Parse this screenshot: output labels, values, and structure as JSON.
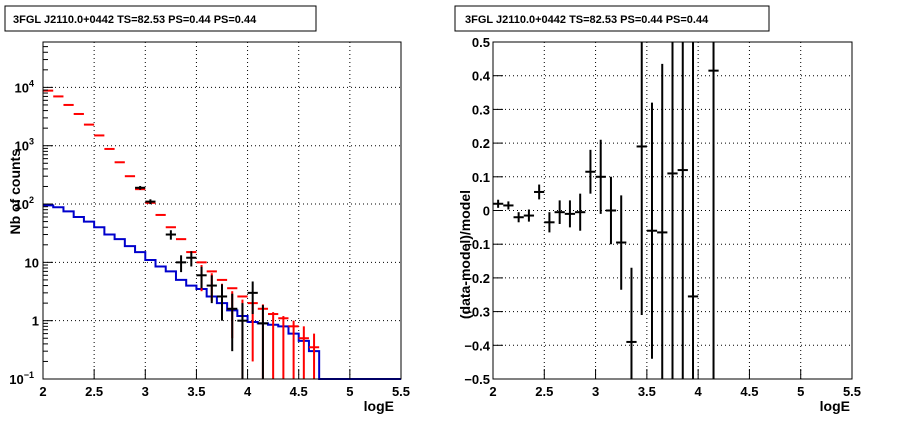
{
  "chart_data": [
    {
      "type": "line",
      "title": "3FGL J2110.0+0442 TS=82.53 PS=0.44 PS=0.44",
      "xlabel": "logE",
      "ylabel": "Nb of counts",
      "xlim": [
        2,
        5.5
      ],
      "ylim": [
        0.1,
        60000
      ],
      "yscale": "log",
      "grid": true,
      "x_ticks": [
        "2",
        "2.5",
        "3",
        "3.5",
        "4",
        "4.5",
        "5",
        "5.5"
      ],
      "y_ticks": [
        "10^-1",
        "1",
        "10",
        "10^2",
        "10^3",
        "10^4"
      ],
      "series": [
        {
          "role": "model total (histogram)",
          "color": "#ff0000",
          "x": [
            2.05,
            2.15,
            2.25,
            2.35,
            2.45,
            2.55,
            2.65,
            2.75,
            2.85,
            2.95,
            3.05,
            3.15,
            3.25,
            3.35,
            3.45,
            3.55,
            3.65,
            3.75,
            3.85,
            3.95,
            4.05,
            4.15,
            4.25,
            4.35,
            4.45,
            4.55,
            4.65,
            4.75,
            4.85,
            4.95,
            5.05,
            5.15,
            5.25,
            5.35,
            5.45
          ],
          "values": [
            8800,
            7000,
            5000,
            3500,
            2300,
            1500,
            880,
            520,
            300,
            180,
            105,
            65,
            40,
            25,
            15,
            10,
            7,
            5,
            3.6,
            2.6,
            2.0,
            1.6,
            1.3,
            1.1,
            0.8,
            0.5,
            0.35,
            0.1,
            0.1,
            0.1,
            0.1,
            0.1,
            0.1,
            0.1,
            0.1
          ]
        },
        {
          "role": "source model (histogram)",
          "color": "#0000cc",
          "x": [
            2.05,
            2.15,
            2.25,
            2.35,
            2.45,
            2.55,
            2.65,
            2.75,
            2.85,
            2.95,
            3.05,
            3.15,
            3.25,
            3.35,
            3.45,
            3.55,
            3.65,
            3.75,
            3.85,
            3.95,
            4.05,
            4.15,
            4.25,
            4.35,
            4.45,
            4.55,
            4.65,
            4.75,
            4.85,
            4.95,
            5.05,
            5.15,
            5.25,
            5.35,
            5.45
          ],
          "values": [
            95,
            88,
            75,
            60,
            50,
            40,
            30,
            25,
            19,
            15,
            11,
            8.5,
            7,
            5,
            4,
            3.5,
            2.6,
            2,
            1.5,
            1.2,
            0.95,
            0.9,
            0.85,
            0.8,
            0.6,
            0.45,
            0.3,
            0.1,
            0.1,
            0.1,
            0.1,
            0.1,
            0.1,
            0.1,
            0.1
          ]
        },
        {
          "role": "data (points with error bars)",
          "color": "#000000",
          "x": [
            2.95,
            3.05,
            3.25,
            3.35,
            3.45,
            3.55,
            3.65,
            3.75,
            3.85,
            3.95,
            4.05,
            4.15
          ],
          "values": [
            190,
            110,
            30,
            10,
            12,
            6,
            4,
            2.6,
            1.6,
            1,
            3,
            0.9
          ],
          "errors": [
            14,
            10.5,
            5.5,
            3.2,
            3.5,
            2.4,
            2,
            1.6,
            1.3,
            1,
            1.7,
            0.95
          ]
        },
        {
          "role": "model bin error bars",
          "color": "#ff0000",
          "x": [
            3.55,
            3.65,
            3.75,
            3.85,
            3.95,
            4.05,
            4.15,
            4.25,
            4.35,
            4.45,
            4.55,
            4.65
          ],
          "low": [
            3.2,
            2.2,
            1.2,
            0.5,
            0.1,
            0.2,
            0.1,
            0.1,
            0.1,
            0.1,
            0.1,
            0.1
          ],
          "high": [
            9,
            6.5,
            4.3,
            3.2,
            2.3,
            2,
            1.9,
            1.4,
            1.2,
            1,
            0.8,
            0.6
          ]
        }
      ]
    },
    {
      "type": "scatter",
      "title": "3FGL J2110.0+0442 TS=82.53 PS=0.44 PS=0.44",
      "xlabel": "logE",
      "ylabel": "(data-model)/model",
      "xlim": [
        2,
        5.5
      ],
      "ylim": [
        -0.5,
        0.5
      ],
      "grid": true,
      "x_ticks": [
        "2",
        "2.5",
        "3",
        "3.5",
        "4",
        "4.5",
        "5",
        "5.5"
      ],
      "y_ticks": [
        "-0.5",
        "-0.4",
        "-0.3",
        "-0.2",
        "-0.1",
        "0",
        "0.1",
        "0.2",
        "0.3",
        "0.4",
        "0.5"
      ],
      "series": [
        {
          "role": "residuals",
          "color": "#000000",
          "x": [
            2.05,
            2.15,
            2.25,
            2.35,
            2.45,
            2.55,
            2.65,
            2.75,
            2.85,
            2.95,
            3.05,
            3.15,
            3.25,
            3.35,
            3.45,
            3.55,
            3.65,
            3.75,
            3.85,
            3.95,
            4.15
          ],
          "values": [
            0.02,
            0.015,
            -0.02,
            -0.015,
            0.055,
            -0.035,
            -0.005,
            -0.01,
            -0.005,
            0.115,
            0.1,
            0.0,
            -0.095,
            -0.39,
            0.19,
            -0.06,
            -0.065,
            0.11,
            0.12,
            -0.255,
            0.415
          ],
          "errors": [
            0.012,
            0.012,
            0.015,
            0.018,
            0.022,
            0.03,
            0.035,
            0.04,
            0.055,
            0.065,
            0.11,
            0.1,
            0.14,
            0.22,
            0.5,
            0.38,
            0.5,
            0.9,
            1.0,
            1.2,
            1.5
          ]
        }
      ]
    }
  ]
}
